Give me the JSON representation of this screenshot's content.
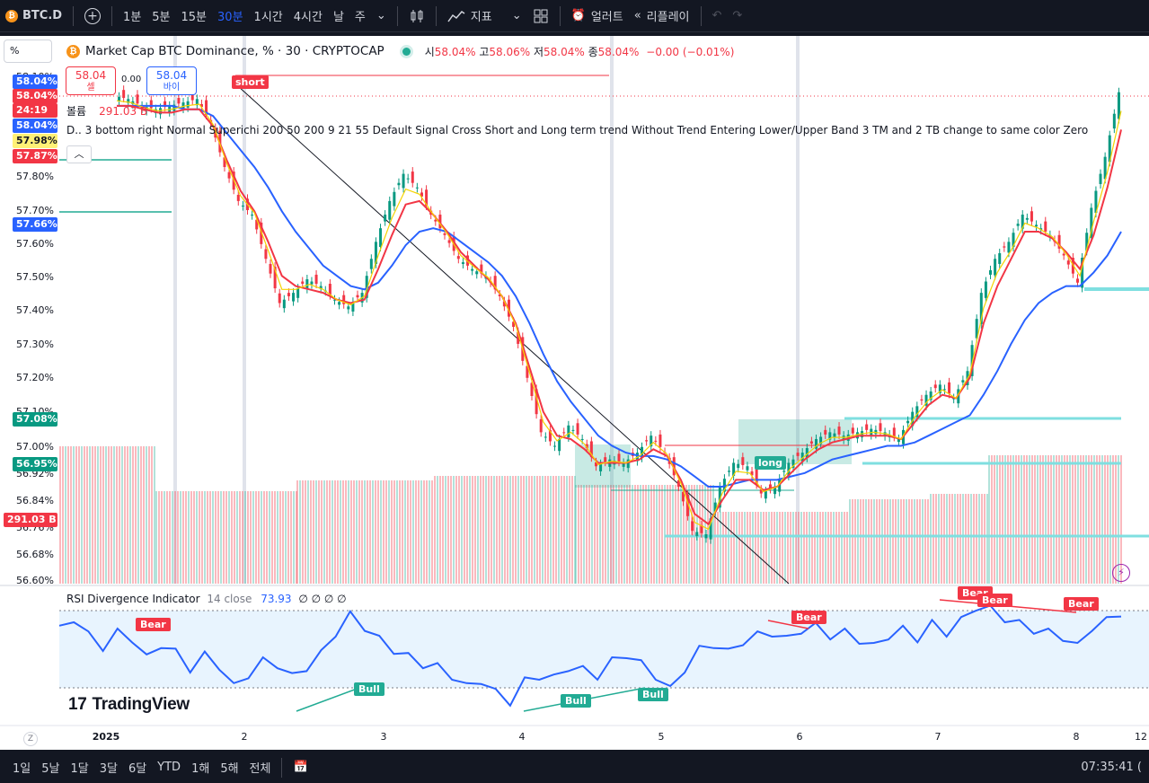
{
  "toolbar": {
    "symbol": "BTC.D",
    "intervals": [
      "1분",
      "5분",
      "15분",
      "30분",
      "1시간",
      "4시간",
      "날",
      "주"
    ],
    "active_interval": "30분",
    "indicators_label": "지표",
    "alert_label": "얼러트",
    "replay_label": "리플레이"
  },
  "legend": {
    "title": "Market Cap BTC Dominance, % · 30 · CRYPTOCAP",
    "open_label": "시",
    "open": "58.04%",
    "high_label": "고",
    "high": "58.06%",
    "low_label": "저",
    "low": "58.04%",
    "close_label": "종",
    "close": "58.04%",
    "change": "−0.00 (−0.01%)",
    "sell_price": "58.04",
    "sell_label": "셀",
    "buy_price": "58.04",
    "buy_label": "바이",
    "spread": "0.00",
    "volume_label": "볼륨",
    "volume_value": "291.03 B",
    "indicator_text": "D.. 3 bottom right Normal Superichi 200 50 200 9 21 55 Default Signal Cross Short and Long term trend Without Trend Entering Lower/Upper Band 3 TM and 2 TB change to same color Zero Line ...",
    "scale_mode": "%"
  },
  "price_axis": {
    "ticks": [
      "58.10%",
      "57.80%",
      "57.70%",
      "57.60%",
      "57.50%",
      "57.40%",
      "57.30%",
      "57.20%",
      "57.10%",
      "57.00%",
      "56.92%",
      "56.84%",
      "56.76%",
      "56.68%",
      "56.60%"
    ],
    "tags": {
      "last": "58.04%",
      "last_red": "58.04%",
      "countdown": "24:19",
      "symbol_tag": "BTC.D",
      "blue2": "58.04%",
      "yellow": "57.98%",
      "red2": "57.87%",
      "blue3": "57.66%",
      "teal1": "57.08%",
      "teal2": "56.95%",
      "volume": "291.03 B"
    }
  },
  "signals": {
    "short": "short",
    "long": "long"
  },
  "rsi": {
    "name": "RSI Divergence Indicator",
    "params": "14 close",
    "value": "73.93",
    "nulls": "∅ ∅ ∅ ∅",
    "labels": {
      "bear": "Bear",
      "bull": "Bull"
    }
  },
  "time_axis": [
    "2025",
    "2",
    "3",
    "4",
    "5",
    "6",
    "7",
    "8",
    "12"
  ],
  "timeframes": [
    "1일",
    "5날",
    "1달",
    "3달",
    "6달",
    "YTD",
    "1해",
    "5해",
    "전체"
  ],
  "clock": "07:35:41 (",
  "branding": "TradingView",
  "chart_data": {
    "type": "candlestick",
    "series": [
      {
        "name": "price",
        "values": [
          58.03,
          58.02,
          58.0,
          57.99,
          58.0,
          58.01,
          58.02,
          57.95,
          57.82,
          57.72,
          57.68,
          57.55,
          57.42,
          57.45,
          57.49,
          57.47,
          57.43,
          57.41,
          57.45,
          57.6,
          57.72,
          57.8,
          57.76,
          57.68,
          57.62,
          57.55,
          57.52,
          57.5,
          57.44,
          57.35,
          57.2,
          57.04,
          57.0,
          57.06,
          57.02,
          56.94,
          56.96,
          56.95,
          56.98,
          57.03,
          56.98,
          56.88,
          56.75,
          56.74,
          56.88,
          56.95,
          56.94,
          56.86,
          56.88,
          56.95,
          56.98,
          57.02,
          57.04,
          57.03,
          57.04,
          57.05,
          57.04,
          57.02,
          57.1,
          57.15,
          57.18,
          57.14,
          57.22,
          57.45,
          57.55,
          57.6,
          57.68,
          57.65,
          57.62,
          57.56,
          57.48,
          57.7,
          57.85,
          58.04
        ]
      },
      {
        "name": "fast",
        "values": [
          58.0,
          58.0,
          57.99,
          57.98,
          57.98,
          57.99,
          57.99,
          57.94,
          57.84,
          57.75,
          57.69,
          57.6,
          57.5,
          57.47,
          57.46,
          57.45,
          57.43,
          57.42,
          57.43,
          57.52,
          57.62,
          57.71,
          57.72,
          57.68,
          57.63,
          57.57,
          57.53,
          57.49,
          57.44,
          57.36,
          57.23,
          57.1,
          57.03,
          57.02,
          56.99,
          56.95,
          56.95,
          56.95,
          56.96,
          56.99,
          56.97,
          56.9,
          56.8,
          56.77,
          56.84,
          56.9,
          56.9,
          56.87,
          56.88,
          56.92,
          56.96,
          56.99,
          57.01,
          57.02,
          57.03,
          57.03,
          57.03,
          57.02,
          57.07,
          57.12,
          57.15,
          57.14,
          57.2,
          57.36,
          57.47,
          57.55,
          57.63,
          57.63,
          57.61,
          57.57,
          57.52,
          57.62,
          57.76,
          57.93
        ]
      },
      {
        "name": "slow",
        "values": [
          58.0,
          58.0,
          58.0,
          58.0,
          58.0,
          57.99,
          57.99,
          57.97,
          57.92,
          57.87,
          57.82,
          57.76,
          57.69,
          57.63,
          57.58,
          57.53,
          57.5,
          57.47,
          57.46,
          57.48,
          57.53,
          57.59,
          57.63,
          57.64,
          57.63,
          57.6,
          57.57,
          57.54,
          57.5,
          57.44,
          57.36,
          57.27,
          57.19,
          57.13,
          57.08,
          57.03,
          57.0,
          56.98,
          56.97,
          56.97,
          56.96,
          56.94,
          56.91,
          56.88,
          56.88,
          56.89,
          56.9,
          56.9,
          56.9,
          56.91,
          56.92,
          56.94,
          56.96,
          56.97,
          56.98,
          56.99,
          57.0,
          57.0,
          57.01,
          57.03,
          57.05,
          57.07,
          57.09,
          57.15,
          57.22,
          57.3,
          57.37,
          57.42,
          57.45,
          57.47,
          57.47,
          57.51,
          57.56,
          57.63
        ]
      }
    ],
    "ylim": [
      56.6,
      58.1
    ],
    "rsi_values": [
      62,
      70,
      58,
      50,
      60,
      56,
      42,
      52,
      46,
      35,
      44,
      37,
      22,
      31,
      40,
      38,
      29,
      36,
      45,
      60,
      72,
      64,
      55,
      48,
      43,
      38,
      36,
      30,
      22,
      27,
      18,
      12,
      26,
      30,
      28,
      36,
      34,
      30,
      40,
      45,
      38,
      30,
      20,
      35,
      48,
      52,
      46,
      54,
      58,
      60,
      55,
      62,
      64,
      58,
      60,
      55,
      50,
      58,
      62,
      56,
      66,
      60,
      68,
      78,
      76,
      70,
      66,
      62,
      60,
      57,
      50,
      64,
      68,
      74
    ]
  }
}
